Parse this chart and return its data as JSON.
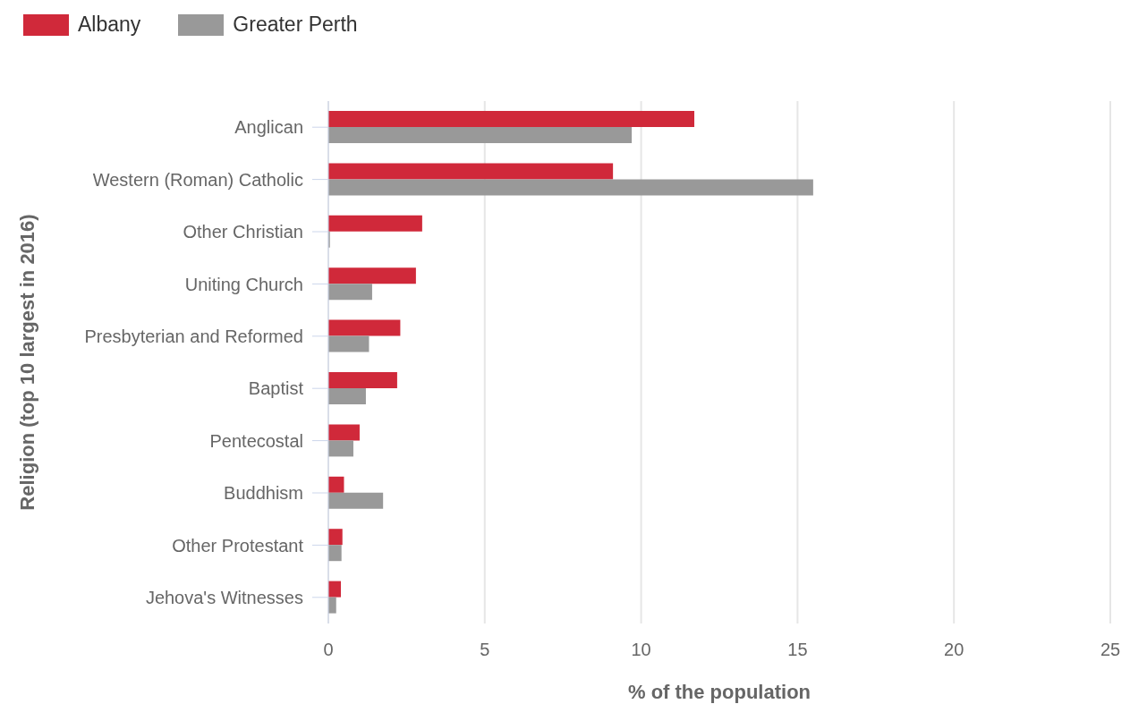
{
  "chart_data": {
    "type": "bar",
    "orientation": "horizontal",
    "xlabel": "% of the population",
    "ylabel": "Religion (top 10 largest in 2016)",
    "categories": [
      "Anglican",
      "Western (Roman) Catholic",
      "Other Christian",
      "Uniting Church",
      "Presbyterian and Reformed",
      "Baptist",
      "Pentecostal",
      "Buddhism",
      "Other Protestant",
      "Jehova's Witnesses"
    ],
    "series": [
      {
        "name": "Albany",
        "color": "#d0293a",
        "values": [
          11.7,
          9.1,
          3.0,
          2.8,
          2.3,
          2.2,
          1.0,
          0.5,
          0.45,
          0.4
        ]
      },
      {
        "name": "Greater Perth",
        "color": "#999999",
        "values": [
          9.7,
          15.5,
          0.05,
          1.4,
          1.3,
          1.2,
          0.8,
          1.75,
          0.42,
          0.25
        ]
      }
    ],
    "xlim": [
      0,
      25
    ],
    "xticks": [
      0,
      5,
      10,
      15,
      20,
      25
    ],
    "grid": "x",
    "legend": "top left"
  }
}
